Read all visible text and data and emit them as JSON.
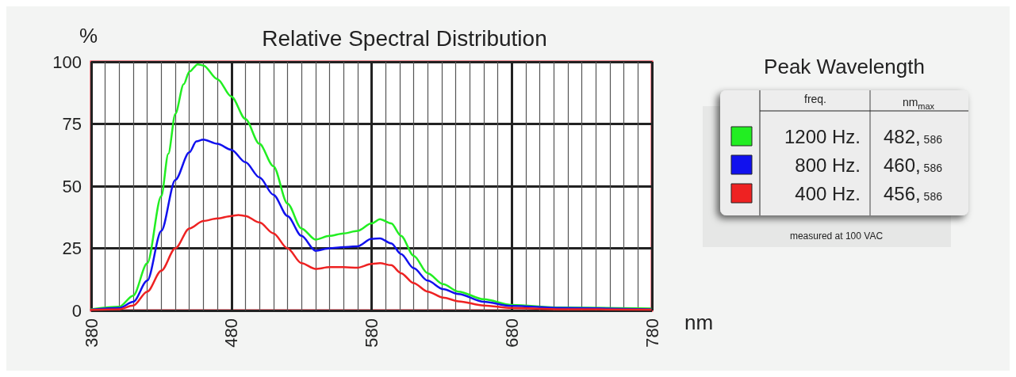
{
  "chart_data": {
    "type": "line",
    "title": "Relative Spectral Distribution",
    "xlabel": "nm",
    "ylabel": "%",
    "legend_title": "Peak Wavelength",
    "legend": "right",
    "grid": true,
    "marker": "none",
    "line_style": "solid",
    "xlim": [
      380,
      780
    ],
    "ylim": [
      0,
      100
    ],
    "xticks": [
      380,
      {
        "value": 390,
        "label": null
      },
      {
        "value": 400,
        "label": null
      },
      {
        "value": 410,
        "label": null
      },
      {
        "value": 420,
        "label": null
      },
      {
        "value": 430,
        "label": null
      },
      {
        "value": 440,
        "label": null
      },
      {
        "value": 450,
        "label": null
      },
      {
        "value": 460,
        "label": null
      },
      {
        "value": 470,
        "label": null
      },
      480,
      {
        "value": 490,
        "label": null
      },
      {
        "value": 500,
        "label": null
      },
      {
        "value": 510,
        "label": null
      },
      {
        "value": 520,
        "label": null
      },
      {
        "value": 530,
        "label": null
      },
      {
        "value": 540,
        "label": null
      },
      {
        "value": 550,
        "label": null
      },
      {
        "value": 560,
        "label": null
      },
      {
        "value": 570,
        "label": null
      },
      580,
      {
        "value": 590,
        "label": null
      },
      {
        "value": 600,
        "label": null
      },
      {
        "value": 610,
        "label": null
      },
      {
        "value": 620,
        "label": null
      },
      {
        "value": 630,
        "label": null
      },
      {
        "value": 640,
        "label": null
      },
      {
        "value": 650,
        "label": null
      },
      {
        "value": 660,
        "label": null
      },
      {
        "value": 670,
        "label": null
      },
      680,
      {
        "value": 690,
        "label": null
      },
      {
        "value": 700,
        "label": null
      },
      {
        "value": 710,
        "label": null
      },
      {
        "value": 720,
        "label": null
      },
      {
        "value": 730,
        "label": null
      },
      {
        "value": 740,
        "label": null
      },
      {
        "value": 750,
        "label": null
      },
      {
        "value": 760,
        "label": null
      },
      {
        "value": 770,
        "label": null
      },
      780
    ],
    "yticks": [
      0,
      25,
      50,
      75,
      100
    ],
    "annotations": [
      "freq.",
      "nm$_{max}$",
      "482, 586",
      "460, 586",
      "456, 586",
      "measured at 100 VAC"
    ],
    "series": [
      {
        "name": "1200 Hz.",
        "color": "#22ee22",
        "x": [
          380,
          400,
          410,
          420,
          430,
          435,
          440,
          446,
          450,
          456,
          460,
          470,
          480,
          490,
          500,
          510,
          520,
          530,
          540,
          550,
          560,
          570,
          580,
          586,
          594,
          601,
          610,
          620,
          631,
          642,
          660,
          680,
          715,
          779
        ],
        "values": [
          0.5,
          1.5,
          6,
          19,
          46,
          63,
          79,
          91,
          96,
          99,
          98.5,
          93,
          86,
          77,
          67,
          58,
          43,
          33,
          28.5,
          30,
          31,
          32,
          35,
          36.7,
          35,
          30,
          22,
          15,
          10.6,
          7.6,
          4.5,
          2.2,
          1.2,
          0.8
        ]
      },
      {
        "name": "800 Hz.",
        "color": "#1111ee",
        "x": [
          380,
          400,
          410,
          420,
          430,
          440,
          450,
          455,
          460,
          470,
          480,
          490,
          500,
          510,
          520,
          530,
          540,
          550,
          560,
          570,
          580,
          586,
          594,
          601,
          610,
          620,
          631,
          642,
          660,
          680,
          715,
          779
        ],
        "values": [
          0.3,
          1,
          3.5,
          12,
          32,
          52.5,
          63.6,
          68,
          68.7,
          67,
          64.6,
          59.6,
          53.5,
          46.5,
          38,
          30,
          24,
          25,
          25.5,
          25.8,
          28.8,
          29,
          27,
          22.7,
          17,
          12,
          8.6,
          6.6,
          3.5,
          1.8,
          1,
          0.5
        ]
      },
      {
        "name": "400 Hz.",
        "color": "#ee2222",
        "x": [
          380,
          400,
          410,
          420,
          430,
          440,
          450,
          460,
          470,
          480,
          485,
          490,
          500,
          510,
          520,
          530,
          540,
          550,
          560,
          570,
          580,
          586,
          594,
          601,
          610,
          620,
          631,
          642,
          660,
          680,
          715,
          779
        ],
        "values": [
          0.2,
          0.5,
          2,
          7.6,
          16,
          25,
          33,
          36,
          37,
          38,
          38.4,
          38,
          35.4,
          31,
          25,
          19,
          16.7,
          17.4,
          17.4,
          17.2,
          18.7,
          19,
          18.2,
          15,
          11,
          7.6,
          5.2,
          3.7,
          2,
          1,
          0.5,
          0.3
        ]
      }
    ]
  }
}
